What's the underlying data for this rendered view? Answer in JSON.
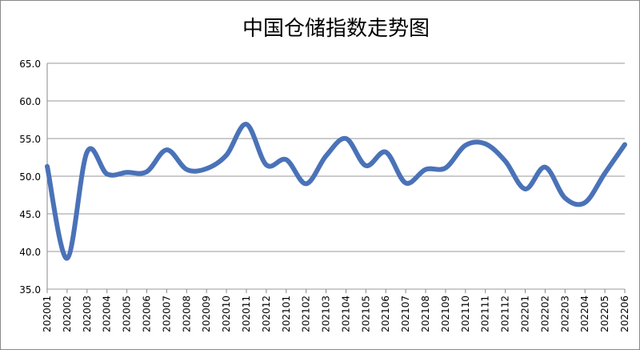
{
  "chart_data": {
    "type": "line",
    "title": "中国仓储指数走势图",
    "categories": [
      "202001",
      "202002",
      "202003",
      "202004",
      "202005",
      "202006",
      "202007",
      "202008",
      "202009",
      "202010",
      "202011",
      "202012",
      "202101",
      "202102",
      "202103",
      "202104",
      "202105",
      "202106",
      "202107",
      "202108",
      "202109",
      "202110",
      "202111",
      "202112",
      "202201",
      "202202",
      "202203",
      "202204",
      "202205",
      "202206"
    ],
    "values": [
      51.3,
      39.1,
      53.2,
      50.3,
      50.5,
      50.6,
      53.5,
      50.9,
      51.0,
      52.8,
      56.9,
      51.5,
      52.2,
      49.0,
      52.7,
      55.0,
      51.4,
      53.2,
      49.1,
      50.9,
      51.1,
      54.1,
      54.3,
      52.0,
      48.3,
      51.2,
      47.1,
      46.5,
      50.4,
      54.2
    ],
    "color": "#4a72b8",
    "ylim": [
      35,
      65
    ],
    "yticks": [
      {
        "value": 35,
        "label": "35.0"
      },
      {
        "value": 40,
        "label": "40.0"
      },
      {
        "value": 45,
        "label": "45.0"
      },
      {
        "value": 50,
        "label": "50.0"
      },
      {
        "value": 55,
        "label": "55.0"
      },
      {
        "value": 60,
        "label": "60.0"
      },
      {
        "value": 65,
        "label": "65.0"
      }
    ],
    "grid": true
  }
}
